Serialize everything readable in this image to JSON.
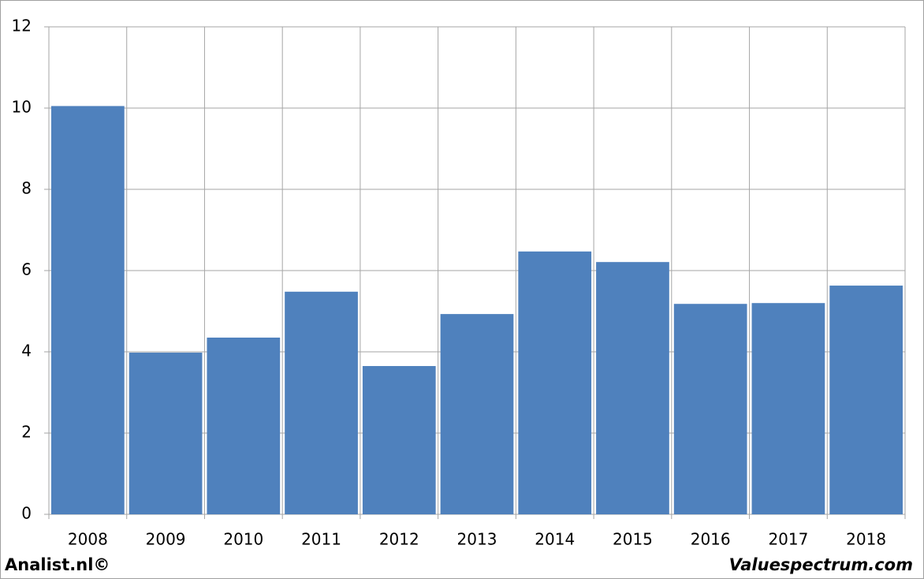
{
  "chart_data": {
    "type": "bar",
    "categories": [
      "2008",
      "2009",
      "2010",
      "2011",
      "2012",
      "2013",
      "2014",
      "2015",
      "2016",
      "2017",
      "2018"
    ],
    "values": [
      10.05,
      3.98,
      4.35,
      5.48,
      3.65,
      4.93,
      6.47,
      6.21,
      5.18,
      5.2,
      5.63
    ],
    "color": "#4f81bd",
    "ylim": [
      0,
      12
    ],
    "yticks": [
      0,
      2,
      4,
      6,
      8,
      10,
      12
    ],
    "grid": true,
    "footer_left": "Analist.nl©",
    "footer_right": "Valuespectrum.com"
  }
}
